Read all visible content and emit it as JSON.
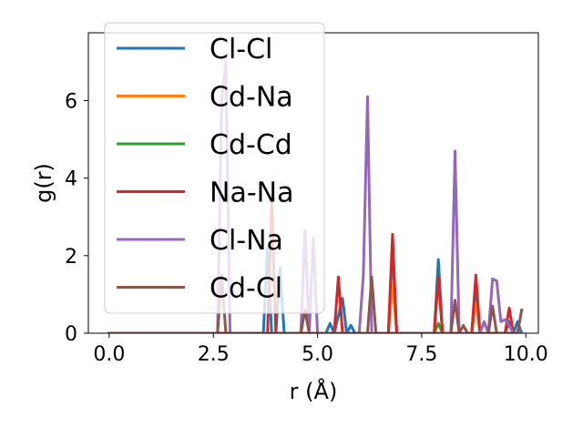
{
  "chart_data": {
    "type": "line",
    "xlabel": "r (Å)",
    "ylabel": "g(r)",
    "xlim": [
      -0.5,
      10.3
    ],
    "ylim": [
      0,
      7.75
    ],
    "xticks": [
      0.0,
      2.5,
      5.0,
      7.5,
      10.0
    ],
    "xtick_labels": [
      "0.0",
      "2.5",
      "5.0",
      "7.5",
      "10.0"
    ],
    "yticks": [
      0,
      2,
      4,
      6
    ],
    "ytick_labels": [
      "0",
      "2",
      "4",
      "6"
    ],
    "grid": false,
    "legend_position": "top-left",
    "series": [
      {
        "name": "Cl-Cl",
        "color": "#1f77b4",
        "points": [
          [
            0,
            0
          ],
          [
            3.7,
            0
          ],
          [
            3.8,
            2.2
          ],
          [
            3.9,
            0
          ],
          [
            4.0,
            0
          ],
          [
            4.1,
            1.7
          ],
          [
            4.2,
            0
          ],
          [
            5.2,
            0
          ],
          [
            5.3,
            0.25
          ],
          [
            5.4,
            0
          ],
          [
            5.6,
            0.9
          ],
          [
            5.7,
            0
          ],
          [
            5.8,
            0.2
          ],
          [
            5.9,
            0
          ],
          [
            6.7,
            0
          ],
          [
            6.8,
            2.2
          ],
          [
            6.9,
            0
          ],
          [
            7.8,
            0
          ],
          [
            7.9,
            1.9
          ],
          [
            8.0,
            0
          ],
          [
            8.7,
            0
          ],
          [
            8.8,
            0.95
          ],
          [
            8.9,
            0
          ],
          [
            9.5,
            0
          ],
          [
            9.6,
            0.3
          ],
          [
            9.7,
            0
          ],
          [
            9.8,
            0.3
          ],
          [
            9.9,
            0
          ]
        ]
      },
      {
        "name": "Cd-Na",
        "color": "#ff7f0e",
        "points": [
          [
            0,
            0
          ],
          [
            6.7,
            0
          ],
          [
            6.8,
            1.3
          ],
          [
            6.9,
            0
          ],
          [
            7.8,
            0
          ],
          [
            7.9,
            1.4
          ],
          [
            8.0,
            0
          ],
          [
            8.7,
            0
          ],
          [
            8.8,
            0.8
          ],
          [
            8.9,
            0
          ],
          [
            9.9,
            0
          ]
        ]
      },
      {
        "name": "Cd-Cd",
        "color": "#2ca02c",
        "points": [
          [
            0,
            0
          ],
          [
            7.8,
            0
          ],
          [
            7.9,
            0.25
          ],
          [
            8.0,
            0
          ],
          [
            9.9,
            0
          ]
        ]
      },
      {
        "name": "Na-Na",
        "color": "#d62728",
        "points": [
          [
            0,
            0
          ],
          [
            3.8,
            0
          ],
          [
            3.9,
            3.4
          ],
          [
            4.0,
            0
          ],
          [
            5.4,
            0
          ],
          [
            5.5,
            1.45
          ],
          [
            5.6,
            0
          ],
          [
            6.7,
            0
          ],
          [
            6.8,
            2.55
          ],
          [
            6.9,
            0
          ],
          [
            7.8,
            0
          ],
          [
            7.9,
            1.45
          ],
          [
            8.0,
            0
          ],
          [
            8.7,
            0
          ],
          [
            8.8,
            1.5
          ],
          [
            8.9,
            0
          ],
          [
            9.5,
            0
          ],
          [
            9.6,
            0.65
          ],
          [
            9.7,
            0
          ],
          [
            9.9,
            0
          ]
        ]
      },
      {
        "name": "Cl-Na",
        "color": "#9467bd",
        "points": [
          [
            0,
            0
          ],
          [
            2.6,
            0
          ],
          [
            2.7,
            6.0
          ],
          [
            2.8,
            7.0
          ],
          [
            2.9,
            0
          ],
          [
            4.6,
            0
          ],
          [
            4.7,
            2.65
          ],
          [
            4.8,
            0
          ],
          [
            4.9,
            2.45
          ],
          [
            5.0,
            0
          ],
          [
            6.0,
            0
          ],
          [
            6.1,
            1.5
          ],
          [
            6.2,
            6.1
          ],
          [
            6.3,
            0
          ],
          [
            8.2,
            0
          ],
          [
            8.3,
            4.7
          ],
          [
            8.4,
            0
          ],
          [
            8.9,
            0
          ],
          [
            9.0,
            0.3
          ],
          [
            9.1,
            0
          ],
          [
            9.2,
            1.4
          ],
          [
            9.3,
            1.35
          ],
          [
            9.4,
            0.3
          ],
          [
            9.5,
            0.35
          ],
          [
            9.6,
            0.2
          ],
          [
            9.7,
            0
          ],
          [
            9.9,
            0
          ]
        ]
      },
      {
        "name": "Cd-Cl",
        "color": "#8c564b",
        "points": [
          [
            0,
            0
          ],
          [
            2.6,
            0
          ],
          [
            2.7,
            1.5
          ],
          [
            2.8,
            0
          ],
          [
            4.6,
            0
          ],
          [
            4.7,
            0.6
          ],
          [
            4.8,
            0
          ],
          [
            6.2,
            0
          ],
          [
            6.3,
            1.45
          ],
          [
            6.4,
            0
          ],
          [
            8.2,
            0
          ],
          [
            8.3,
            0.85
          ],
          [
            8.4,
            0
          ],
          [
            8.5,
            0.2
          ],
          [
            8.6,
            0
          ],
          [
            9.1,
            0
          ],
          [
            9.2,
            0.7
          ],
          [
            9.3,
            0
          ],
          [
            9.8,
            0
          ],
          [
            9.9,
            0.6
          ]
        ]
      }
    ]
  }
}
